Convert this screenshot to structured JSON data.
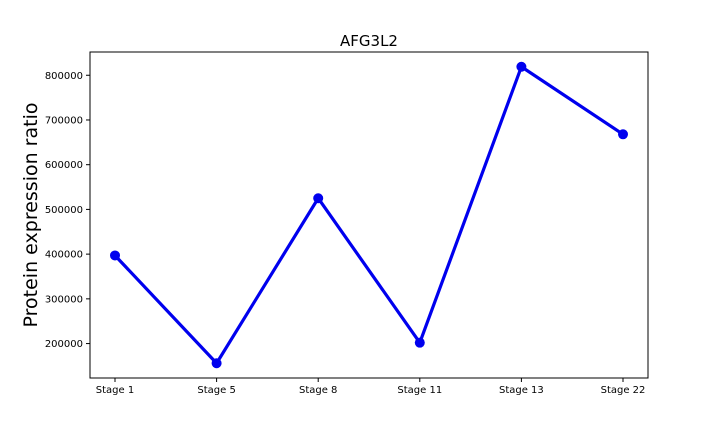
{
  "chart_data": {
    "type": "line",
    "title": "AFG3L2",
    "xlabel": "",
    "ylabel": "Protein expression ratio",
    "categories": [
      "Stage 1",
      "Stage 5",
      "Stage 8",
      "Stage 11",
      "Stage 13",
      "Stage 22"
    ],
    "series": [
      {
        "values": [
          397000,
          156000,
          525000,
          202000,
          819000,
          668000
        ]
      }
    ],
    "yticks": [
      200000,
      300000,
      400000,
      500000,
      600000,
      700000,
      800000
    ],
    "ytick_labels": [
      "200000",
      "300000",
      "400000",
      "500000",
      "600000",
      "700000",
      "800000"
    ],
    "ylim": [
      123000,
      852000
    ],
    "grid": false,
    "color": "#0000ee",
    "marker": "circle"
  }
}
